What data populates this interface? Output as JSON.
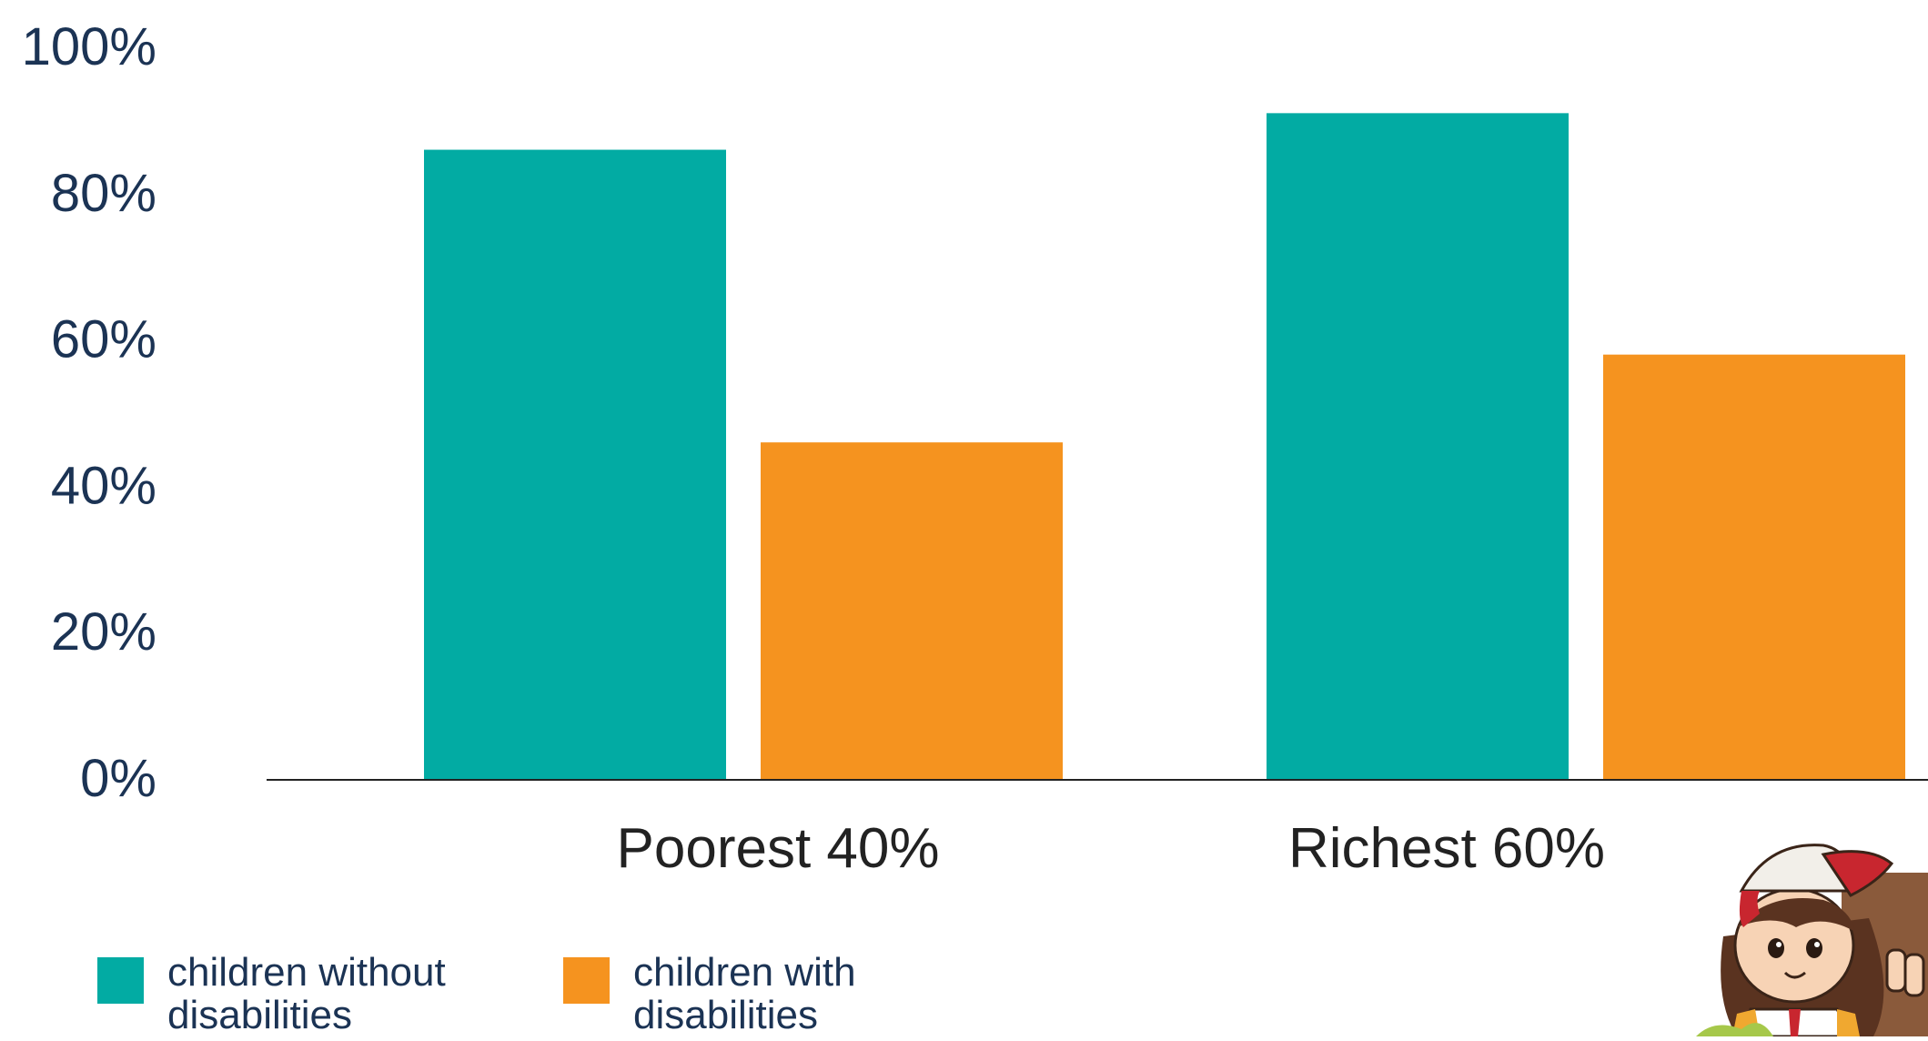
{
  "chart_data": {
    "type": "bar",
    "categories": [
      "Poorest 40%",
      "Richest 60%"
    ],
    "series": [
      {
        "name": "children without disabilities",
        "values": [
          86,
          91
        ],
        "color": "#02aba3"
      },
      {
        "name": "children with disabilities",
        "values": [
          46,
          58
        ],
        "color": "#f5931f"
      }
    ],
    "yticks": [
      "0%",
      "20%",
      "40%",
      "60%",
      "80%",
      "100%"
    ],
    "ylim": [
      0,
      100
    ],
    "title": "",
    "xlabel": "",
    "ylabel": "",
    "grid": false,
    "legend_position": "bottom-left"
  },
  "colors": {
    "text": "#1b3354",
    "category_text": "#222222",
    "axis": "#222222"
  },
  "illustration": {
    "icon": "child-mascot-illustration"
  }
}
